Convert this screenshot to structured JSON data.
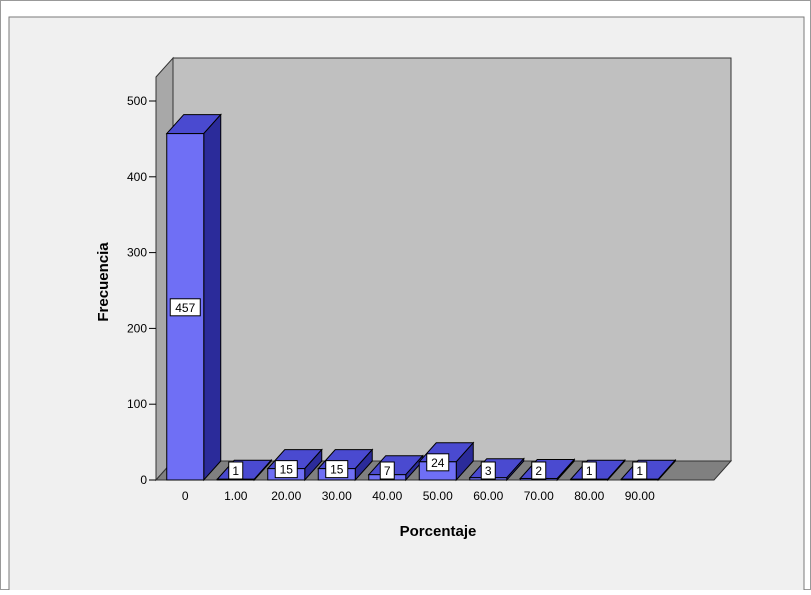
{
  "chart_data": {
    "type": "bar",
    "style": "3d",
    "xlabel": "Porcentaje",
    "ylabel": "Frecuencia",
    "categories": [
      "0",
      "1.00",
      "20.00",
      "30.00",
      "40.00",
      "50.00",
      "60.00",
      "70.00",
      "80.00",
      "90.00"
    ],
    "values": [
      457,
      1,
      15,
      15,
      7,
      24,
      3,
      2,
      1,
      1
    ],
    "data_labels": [
      "457",
      "1",
      "15",
      "15",
      "7",
      "24",
      "3",
      "2",
      "1",
      "1"
    ],
    "yticks": [
      "0",
      "100",
      "200",
      "300",
      "400",
      "500"
    ],
    "ylim": [
      0,
      500
    ],
    "grid": false,
    "legend": "none",
    "colors": {
      "bar_front": "#6f6ff5",
      "bar_top": "#4a4ad0",
      "bar_side": "#2b2b9a",
      "back_wall": "#c0c0c0",
      "side_wall": "#a8a8a8",
      "floor": "#808080",
      "chart_area": "#f0f0f0",
      "label_box": "#ffffff"
    }
  }
}
